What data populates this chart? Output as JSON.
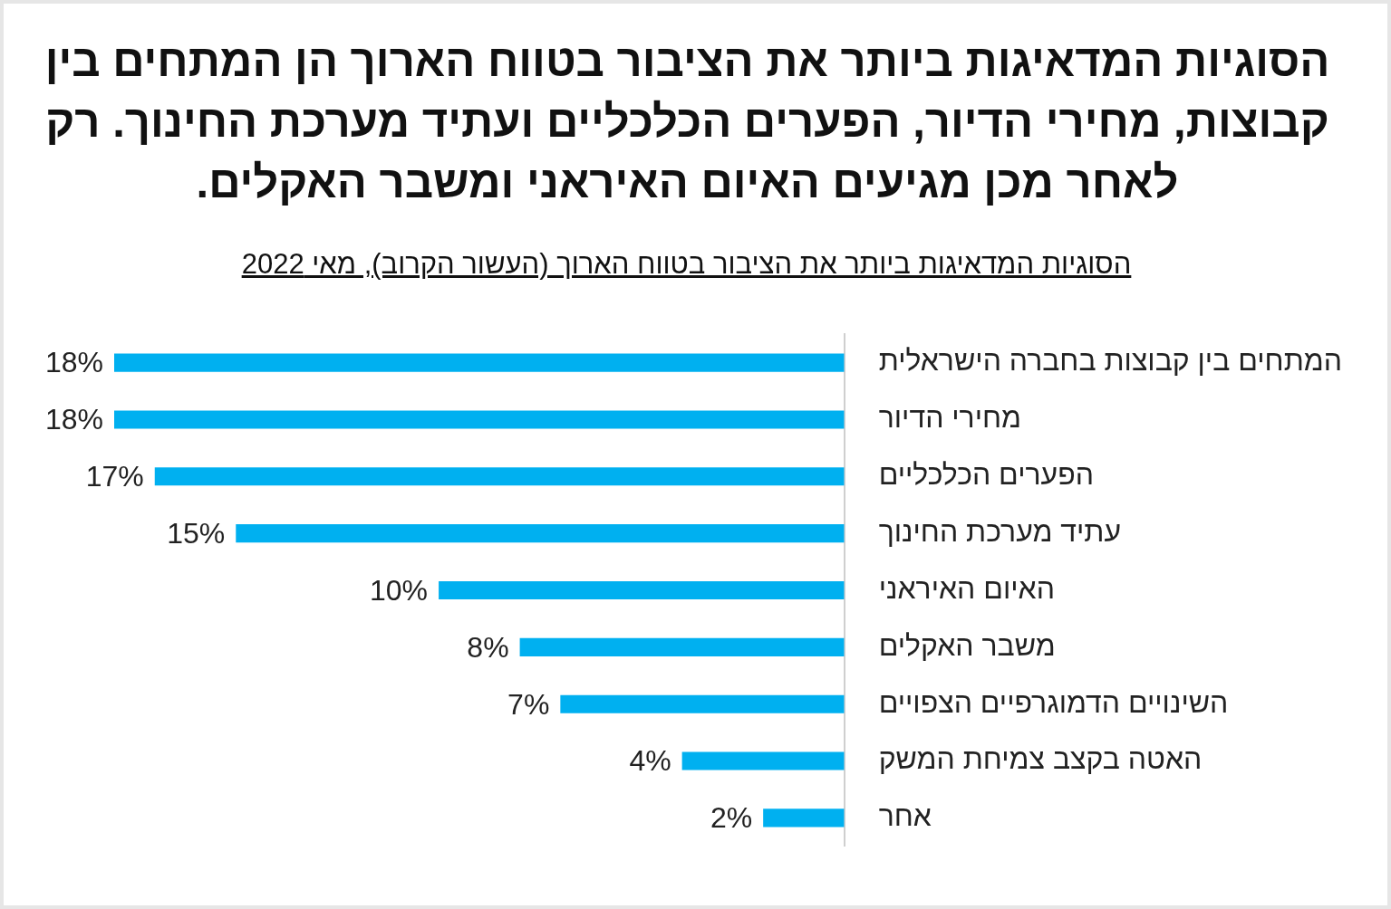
{
  "chart_data": {
    "type": "bar",
    "orientation": "horizontal",
    "title": "הסוגיות המדאיגות ביותר את הציבור בטווח הארוך הן המתחים בין קבוצות, מחירי הדיור, הפערים הכלכליים ועתיד מערכת החינוך. רק לאחר מכן מגיעים האיום האיראני ומשבר האקלים.",
    "subtitle": "הסוגיות המדאיגות ביותר את הציבור בטווח הארוך (העשור הקרוב), מאי 2022",
    "categories": [
      "המתחים בין קבוצות בחברה הישראלית",
      "מחירי הדיור",
      "הפערים הכלכליים",
      "עתיד מערכת החינוך",
      "האיום האיראני",
      "משבר האקלים",
      "השינויים הדמוגרפיים הצפויים",
      "האטה בקצב צמיחת המשק",
      "אחר"
    ],
    "values": [
      18,
      18,
      17,
      15,
      10,
      8,
      7,
      4,
      2
    ],
    "value_labels": [
      "18%",
      "18%",
      "17%",
      "15%",
      "10%",
      "8%",
      "7%",
      "4%",
      "2%"
    ],
    "color": "#00b0f0"
  }
}
